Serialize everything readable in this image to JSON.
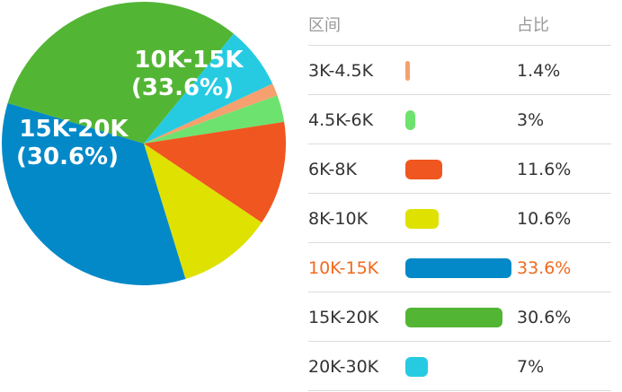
{
  "chart_data": {
    "type": "pie",
    "title": "",
    "header": {
      "range_label": "区间",
      "share_label": "占比"
    },
    "slices": [
      {
        "label": "3K-4.5K",
        "value": 1.4,
        "display": "1.4%",
        "color": "#f5a06e"
      },
      {
        "label": "4.5K-6K",
        "value": 3,
        "display": "3%",
        "color": "#6ee26e"
      },
      {
        "label": "6K-8K",
        "value": 11.6,
        "display": "11.6%",
        "color": "#f0561f"
      },
      {
        "label": "8K-10K",
        "value": 10.6,
        "display": "10.6%",
        "color": "#dfe100"
      },
      {
        "label": "10K-15K",
        "value": 33.6,
        "display": "33.6%",
        "color": "#0389c8"
      },
      {
        "label": "15K-20K",
        "value": 30.6,
        "display": "30.6%",
        "color": "#53b534"
      },
      {
        "label": "20K-30K",
        "value": 7,
        "display": "7%",
        "color": "#26cbe2"
      }
    ],
    "pie_labels": [
      {
        "range": "10K-15K",
        "pct": "(33.6%)"
      },
      {
        "range": "15K-20K",
        "pct": "(30.6%)"
      }
    ],
    "highlight": "10K-15K"
  }
}
